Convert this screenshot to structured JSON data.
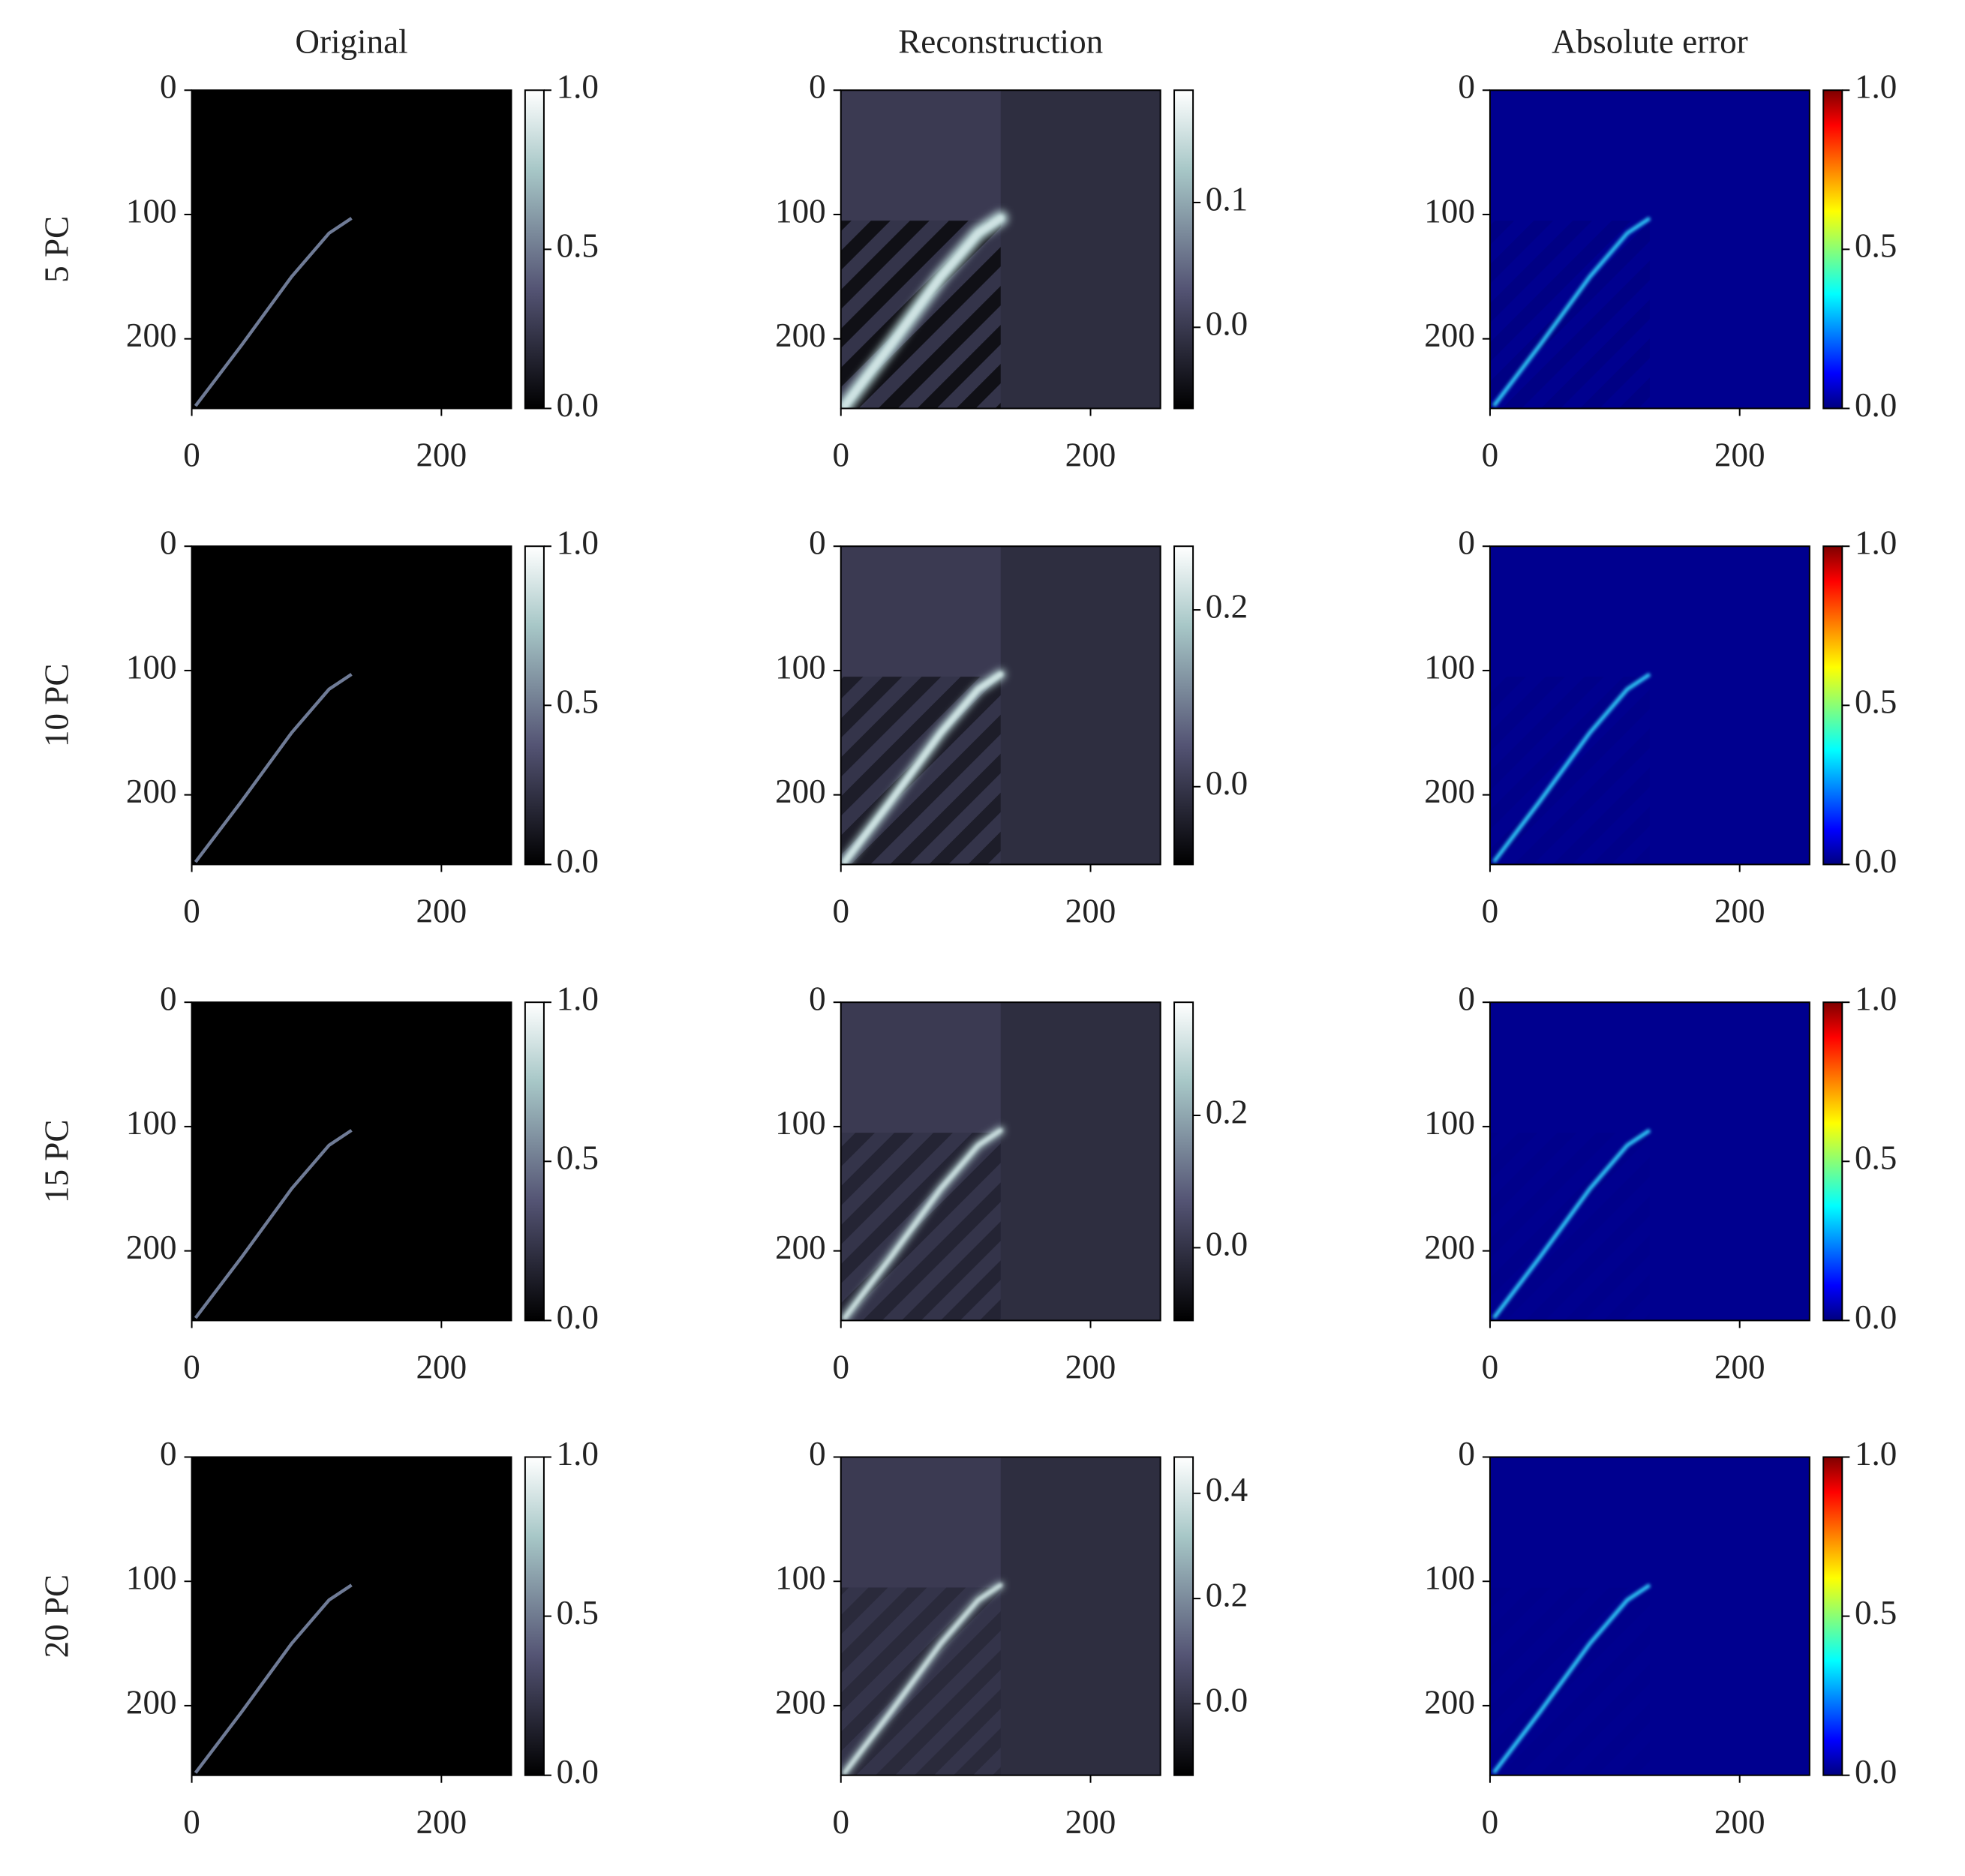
{
  "chart_data": [
    {
      "type": "image",
      "title": "Original",
      "ylabel": "5 PC",
      "cmap": "bone",
      "xlim": [
        0,
        256
      ],
      "ylim": [
        256,
        0
      ],
      "xticks": [
        0,
        200
      ],
      "yticks": [
        0,
        100,
        200
      ],
      "clim": [
        0,
        1
      ],
      "cticks": [
        {
          "value": 0,
          "label": "0.0"
        },
        0.5,
        {
          "value": 1,
          "label": "1.0"
        }
      ]
    },
    {
      "type": "image",
      "title": "Reconstruction",
      "cmap": "bone",
      "xlim": [
        0,
        256
      ],
      "ylim": [
        256,
        0
      ],
      "xticks": [
        0,
        200
      ],
      "yticks": [
        0,
        100,
        200
      ],
      "clim": [
        -0.065,
        0.19
      ],
      "cticks": [
        {
          "value": 0,
          "label": "0.0"
        },
        0.1
      ]
    },
    {
      "type": "image",
      "title": "Absolute error",
      "cmap": "jet",
      "xlim": [
        0,
        256
      ],
      "ylim": [
        256,
        0
      ],
      "xticks": [
        0,
        200
      ],
      "yticks": [
        0,
        100,
        200
      ],
      "clim": [
        0,
        1
      ],
      "cticks": [
        {
          "value": 0,
          "label": "0.0"
        },
        0.5,
        {
          "value": 1,
          "label": "1.0"
        }
      ]
    },
    {
      "type": "image",
      "ylabel": "10 PC",
      "cmap": "bone",
      "xlim": [
        0,
        256
      ],
      "ylim": [
        256,
        0
      ],
      "xticks": [
        0,
        200
      ],
      "yticks": [
        0,
        100,
        200
      ],
      "clim": [
        0,
        1
      ],
      "cticks": [
        {
          "value": 0,
          "label": "0.0"
        },
        0.5,
        {
          "value": 1,
          "label": "1.0"
        }
      ]
    },
    {
      "type": "image",
      "cmap": "bone",
      "xlim": [
        0,
        256
      ],
      "ylim": [
        256,
        0
      ],
      "xticks": [
        0,
        200
      ],
      "yticks": [
        0,
        100,
        200
      ],
      "clim": [
        -0.088,
        0.272
      ],
      "cticks": [
        {
          "value": 0,
          "label": "0.0"
        },
        0.2
      ]
    },
    {
      "type": "image",
      "cmap": "jet",
      "xlim": [
        0,
        256
      ],
      "ylim": [
        256,
        0
      ],
      "xticks": [
        0,
        200
      ],
      "yticks": [
        0,
        100,
        200
      ],
      "clim": [
        0,
        1
      ],
      "cticks": [
        {
          "value": 0,
          "label": "0.0"
        },
        0.5,
        {
          "value": 1,
          "label": "1.0"
        }
      ]
    },
    {
      "type": "image",
      "ylabel": "15 PC",
      "cmap": "bone",
      "xlim": [
        0,
        256
      ],
      "ylim": [
        256,
        0
      ],
      "xticks": [
        0,
        200
      ],
      "yticks": [
        0,
        100,
        200
      ],
      "clim": [
        0,
        1
      ],
      "cticks": [
        {
          "value": 0,
          "label": "0.0"
        },
        0.5,
        {
          "value": 1,
          "label": "1.0"
        }
      ]
    },
    {
      "type": "image",
      "cmap": "bone",
      "xlim": [
        0,
        256
      ],
      "ylim": [
        256,
        0
      ],
      "xticks": [
        0,
        200
      ],
      "yticks": [
        0,
        100,
        200
      ],
      "clim": [
        -0.11,
        0.371
      ],
      "cticks": [
        {
          "value": 0,
          "label": "0.0"
        },
        0.2
      ]
    },
    {
      "type": "image",
      "cmap": "jet",
      "xlim": [
        0,
        256
      ],
      "ylim": [
        256,
        0
      ],
      "xticks": [
        0,
        200
      ],
      "yticks": [
        0,
        100,
        200
      ],
      "clim": [
        0,
        1
      ],
      "cticks": [
        {
          "value": 0,
          "label": "0.0"
        },
        0.5,
        {
          "value": 1,
          "label": "1.0"
        }
      ]
    },
    {
      "type": "image",
      "ylabel": "20 PC",
      "cmap": "bone",
      "xlim": [
        0,
        256
      ],
      "ylim": [
        256,
        0
      ],
      "xticks": [
        0,
        200
      ],
      "yticks": [
        0,
        100,
        200
      ],
      "clim": [
        0,
        1
      ],
      "cticks": [
        {
          "value": 0,
          "label": "0.0"
        },
        0.5,
        {
          "value": 1,
          "label": "1.0"
        }
      ]
    },
    {
      "type": "image",
      "cmap": "bone",
      "xlim": [
        0,
        256
      ],
      "ylim": [
        256,
        0
      ],
      "xticks": [
        0,
        200
      ],
      "yticks": [
        0,
        100,
        200
      ],
      "clim": [
        -0.136,
        0.469
      ],
      "cticks": [
        {
          "value": 0,
          "label": "0.0"
        },
        0.2,
        0.4
      ]
    },
    {
      "type": "image",
      "cmap": "jet",
      "xlim": [
        0,
        256
      ],
      "ylim": [
        256,
        0
      ],
      "xticks": [
        0,
        200
      ],
      "yticks": [
        0,
        100,
        200
      ],
      "clim": [
        0,
        1
      ],
      "cticks": [
        {
          "value": 0,
          "label": "0.0"
        },
        0.5,
        {
          "value": 1,
          "label": "1.0"
        }
      ]
    }
  ]
}
